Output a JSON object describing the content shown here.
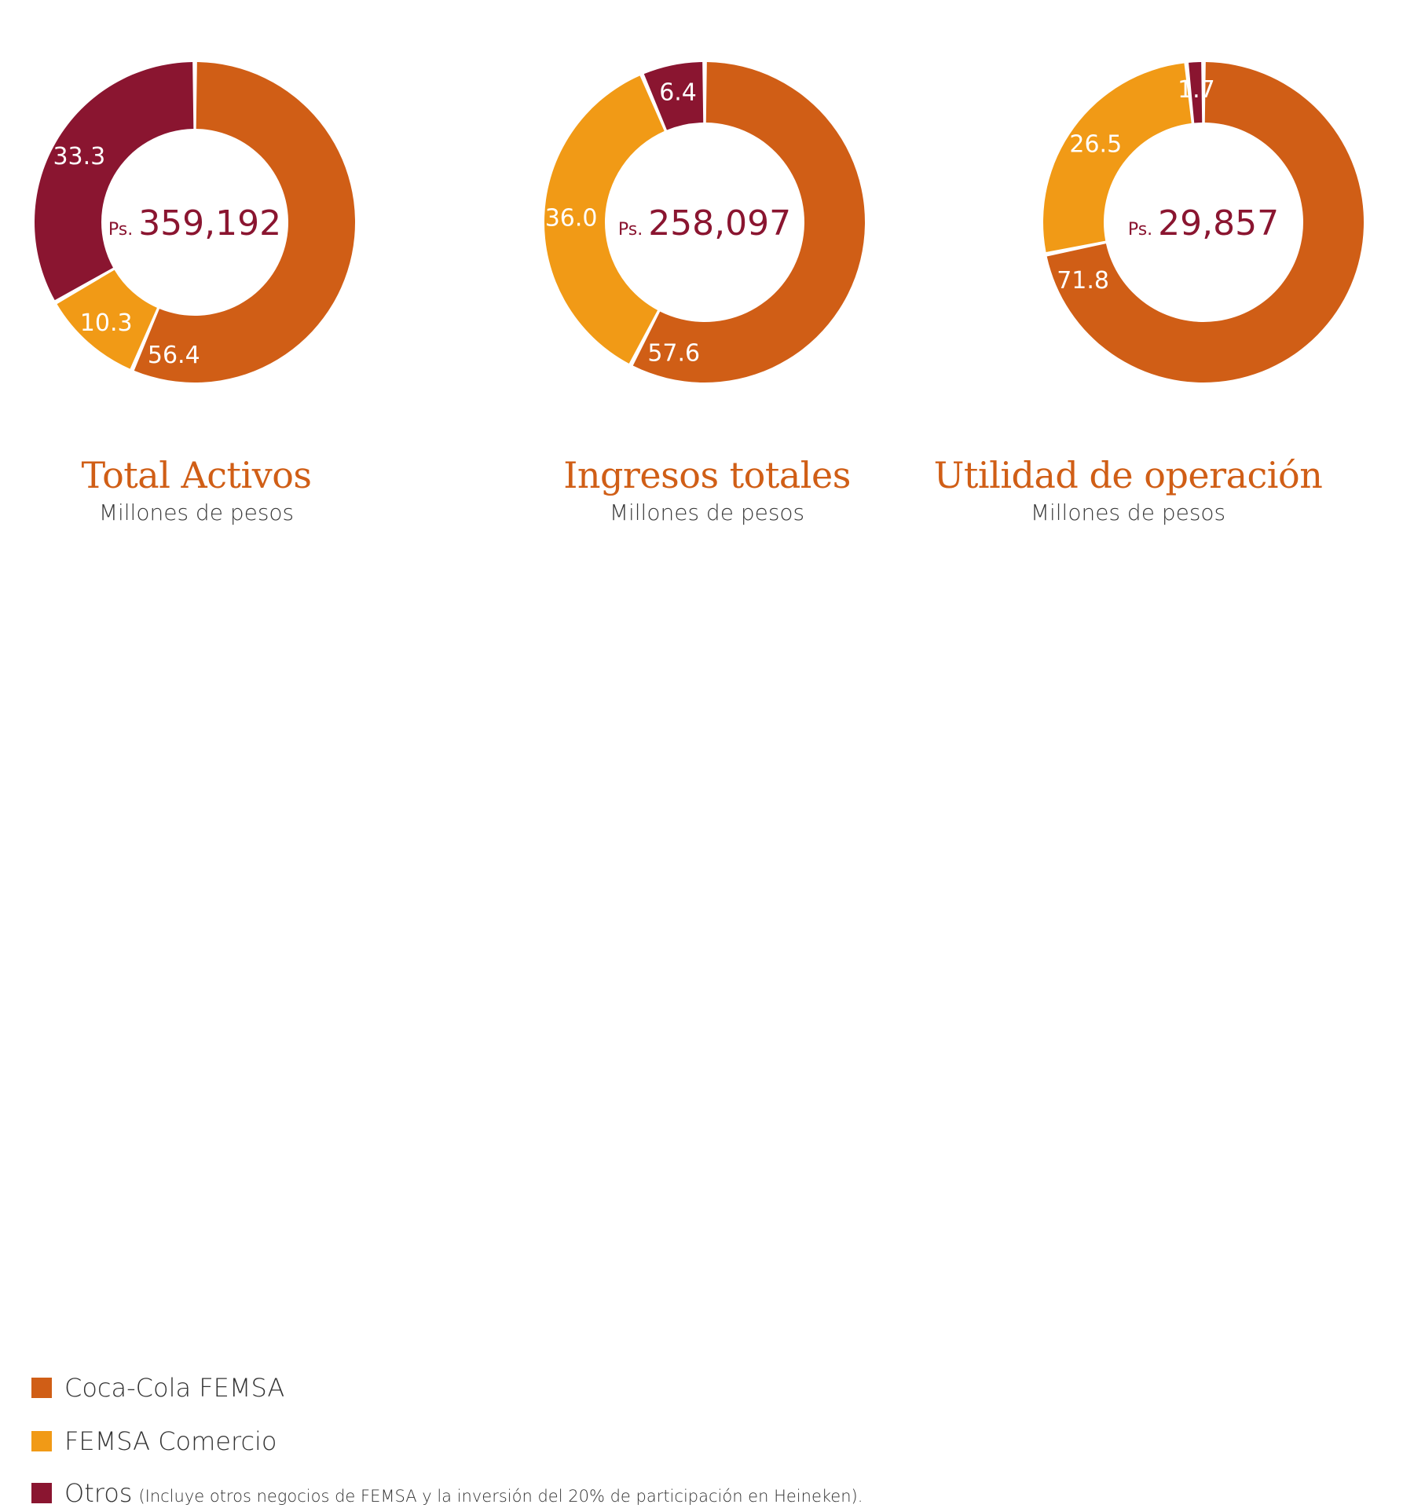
{
  "colors": {
    "coca_cola": "#d05e16",
    "comercio": "#f19a16",
    "otros": "#8a1530",
    "center_text": "#8a1530",
    "title": "#d05e16"
  },
  "chart_data": [
    {
      "type": "pie",
      "title": "Total Activos",
      "subtitle": "Millones de pesos",
      "center_prefix": "Ps.",
      "center_value": "359,192",
      "slices": [
        {
          "name": "Coca-Cola FEMSA",
          "value": 56.4,
          "label": "56.4",
          "color": "#d05e16"
        },
        {
          "name": "FEMSA Comercio",
          "value": 10.3,
          "label": "10.3",
          "color": "#f19a16"
        },
        {
          "name": "Otros",
          "value": 33.3,
          "label": "33.3",
          "color": "#8a1530"
        }
      ]
    },
    {
      "type": "pie",
      "title": "Ingresos totales",
      "subtitle": "Millones de pesos",
      "center_prefix": "Ps.",
      "center_value": "258,097",
      "slices": [
        {
          "name": "Coca-Cola FEMSA",
          "value": 57.6,
          "label": "57.6",
          "color": "#d05e16"
        },
        {
          "name": "FEMSA Comercio",
          "value": 36.0,
          "label": "36.0",
          "color": "#f19a16"
        },
        {
          "name": "Otros",
          "value": 6.4,
          "label": "6.4",
          "color": "#8a1530"
        }
      ]
    },
    {
      "type": "pie",
      "title": "Utilidad de operación",
      "subtitle": "Millones de pesos",
      "center_prefix": "Ps.",
      "center_value": "29,857",
      "slices": [
        {
          "name": "Coca-Cola FEMSA",
          "value": 71.8,
          "label": "71.8",
          "color": "#d05e16"
        },
        {
          "name": "FEMSA Comercio",
          "value": 26.5,
          "label": "26.5",
          "color": "#f19a16"
        },
        {
          "name": "Otros",
          "value": 1.7,
          "label": "1.7",
          "color": "#8a1530"
        }
      ]
    }
  ],
  "legend": {
    "placement": "bottom-left",
    "items": [
      {
        "label": "Coca-Cola FEMSA",
        "note": "",
        "color": "#d05e16"
      },
      {
        "label": "FEMSA Comercio",
        "note": "",
        "color": "#f19a16"
      },
      {
        "label": "Otros",
        "note": "(Incluye otros negocios de FEMSA y la inversión del 20% de participación en Heineken).",
        "color": "#8a1530"
      }
    ]
  }
}
